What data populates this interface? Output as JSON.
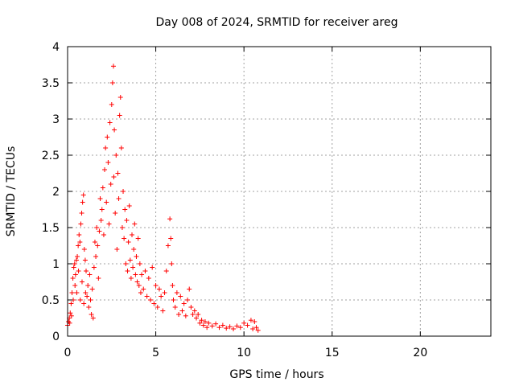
{
  "chart_data": {
    "type": "scatter",
    "title": "Day 008 of 2024, SRMTID for receiver areg",
    "xlabel": "GPS time / hours",
    "ylabel": "SRMTID / TECUs",
    "xlim": [
      0,
      24
    ],
    "ylim": [
      0,
      4
    ],
    "xticks": [
      0,
      5,
      10,
      15,
      20
    ],
    "yticks": [
      0,
      0.5,
      1,
      1.5,
      2,
      2.5,
      3,
      3.5,
      4
    ],
    "xtick_labels": [
      "0",
      "5",
      "10",
      "15",
      "20"
    ],
    "ytick_labels": [
      "0",
      "0.5",
      "1",
      "1.5",
      "2",
      "2.5",
      "3",
      "3.5",
      "4"
    ],
    "grid": true,
    "marker": "+",
    "series": [
      {
        "name": "SRMTID",
        "color": "#ff0000",
        "points": [
          [
            0.0,
            0.15
          ],
          [
            0.05,
            0.2
          ],
          [
            0.1,
            0.25
          ],
          [
            0.12,
            0.18
          ],
          [
            0.15,
            0.32
          ],
          [
            0.2,
            0.45
          ],
          [
            0.22,
            0.28
          ],
          [
            0.25,
            0.6
          ],
          [
            0.3,
            0.8
          ],
          [
            0.32,
            0.5
          ],
          [
            0.35,
            0.95
          ],
          [
            0.4,
            1.0
          ],
          [
            0.42,
            0.7
          ],
          [
            0.45,
            0.85
          ],
          [
            0.5,
            1.05
          ],
          [
            0.52,
            0.6
          ],
          [
            0.55,
            1.1
          ],
          [
            0.6,
            1.25
          ],
          [
            0.62,
            0.9
          ],
          [
            0.65,
            1.4
          ],
          [
            0.7,
            1.3
          ],
          [
            0.72,
            0.5
          ],
          [
            0.75,
            1.55
          ],
          [
            0.8,
            1.7
          ],
          [
            0.82,
            0.75
          ],
          [
            0.85,
            1.85
          ],
          [
            0.9,
            1.95
          ],
          [
            0.92,
            0.45
          ],
          [
            0.95,
            1.2
          ],
          [
            1.0,
            1.05
          ],
          [
            1.02,
            0.6
          ],
          [
            1.05,
            0.9
          ],
          [
            1.1,
            0.55
          ],
          [
            1.15,
            0.7
          ],
          [
            1.2,
            0.4
          ],
          [
            1.25,
            0.85
          ],
          [
            1.3,
            0.5
          ],
          [
            1.35,
            0.3
          ],
          [
            1.4,
            0.65
          ],
          [
            1.45,
            0.25
          ],
          [
            1.5,
            0.95
          ],
          [
            1.55,
            1.3
          ],
          [
            1.6,
            1.1
          ],
          [
            1.65,
            1.5
          ],
          [
            1.7,
            1.25
          ],
          [
            1.75,
            0.8
          ],
          [
            1.8,
            1.45
          ],
          [
            1.85,
            1.9
          ],
          [
            1.9,
            1.6
          ],
          [
            1.95,
            1.75
          ],
          [
            2.0,
            2.05
          ],
          [
            2.05,
            1.4
          ],
          [
            2.1,
            2.3
          ],
          [
            2.15,
            2.6
          ],
          [
            2.2,
            1.85
          ],
          [
            2.25,
            2.75
          ],
          [
            2.3,
            2.4
          ],
          [
            2.35,
            1.55
          ],
          [
            2.4,
            2.95
          ],
          [
            2.45,
            2.1
          ],
          [
            2.5,
            3.2
          ],
          [
            2.55,
            3.5
          ],
          [
            2.6,
            3.73
          ],
          [
            2.62,
            2.2
          ],
          [
            2.65,
            2.85
          ],
          [
            2.7,
            1.7
          ],
          [
            2.75,
            2.5
          ],
          [
            2.8,
            1.2
          ],
          [
            2.85,
            2.25
          ],
          [
            2.9,
            1.9
          ],
          [
            2.95,
            3.05
          ],
          [
            3.0,
            3.3
          ],
          [
            3.05,
            2.6
          ],
          [
            3.1,
            1.5
          ],
          [
            3.15,
            2.0
          ],
          [
            3.2,
            1.35
          ],
          [
            3.25,
            1.75
          ],
          [
            3.3,
            1.0
          ],
          [
            3.35,
            1.6
          ],
          [
            3.4,
            0.9
          ],
          [
            3.45,
            1.3
          ],
          [
            3.5,
            1.8
          ],
          [
            3.55,
            1.05
          ],
          [
            3.6,
            0.8
          ],
          [
            3.65,
            1.4
          ],
          [
            3.7,
            0.95
          ],
          [
            3.75,
            1.2
          ],
          [
            3.8,
            1.55
          ],
          [
            3.85,
            0.85
          ],
          [
            3.9,
            1.1
          ],
          [
            3.95,
            0.75
          ],
          [
            4.0,
            1.35
          ],
          [
            4.05,
            0.7
          ],
          [
            4.1,
            1.0
          ],
          [
            4.15,
            0.6
          ],
          [
            4.2,
            0.85
          ],
          [
            4.3,
            0.65
          ],
          [
            4.4,
            0.9
          ],
          [
            4.5,
            0.55
          ],
          [
            4.6,
            0.8
          ],
          [
            4.7,
            0.5
          ],
          [
            4.8,
            0.95
          ],
          [
            4.9,
            0.45
          ],
          [
            5.0,
            0.7
          ],
          [
            5.1,
            0.4
          ],
          [
            5.2,
            0.65
          ],
          [
            5.3,
            0.55
          ],
          [
            5.4,
            0.35
          ],
          [
            5.5,
            0.6
          ],
          [
            5.6,
            0.9
          ],
          [
            5.7,
            1.25
          ],
          [
            5.8,
            1.62
          ],
          [
            5.85,
            1.35
          ],
          [
            5.9,
            1.0
          ],
          [
            5.95,
            0.7
          ],
          [
            6.0,
            0.5
          ],
          [
            6.1,
            0.4
          ],
          [
            6.2,
            0.6
          ],
          [
            6.3,
            0.3
          ],
          [
            6.4,
            0.55
          ],
          [
            6.5,
            0.35
          ],
          [
            6.6,
            0.45
          ],
          [
            6.7,
            0.28
          ],
          [
            6.8,
            0.5
          ],
          [
            6.9,
            0.65
          ],
          [
            7.0,
            0.4
          ],
          [
            7.1,
            0.3
          ],
          [
            7.2,
            0.35
          ],
          [
            7.3,
            0.25
          ],
          [
            7.4,
            0.3
          ],
          [
            7.5,
            0.18
          ],
          [
            7.6,
            0.22
          ],
          [
            7.7,
            0.15
          ],
          [
            7.8,
            0.2
          ],
          [
            7.9,
            0.12
          ],
          [
            8.0,
            0.18
          ],
          [
            8.2,
            0.14
          ],
          [
            8.4,
            0.17
          ],
          [
            8.6,
            0.12
          ],
          [
            8.8,
            0.15
          ],
          [
            9.0,
            0.11
          ],
          [
            9.2,
            0.13
          ],
          [
            9.4,
            0.1
          ],
          [
            9.6,
            0.14
          ],
          [
            9.8,
            0.12
          ],
          [
            10.0,
            0.18
          ],
          [
            10.2,
            0.15
          ],
          [
            10.4,
            0.22
          ],
          [
            10.5,
            0.1
          ],
          [
            10.6,
            0.2
          ],
          [
            10.7,
            0.12
          ],
          [
            10.8,
            0.08
          ]
        ]
      }
    ]
  }
}
